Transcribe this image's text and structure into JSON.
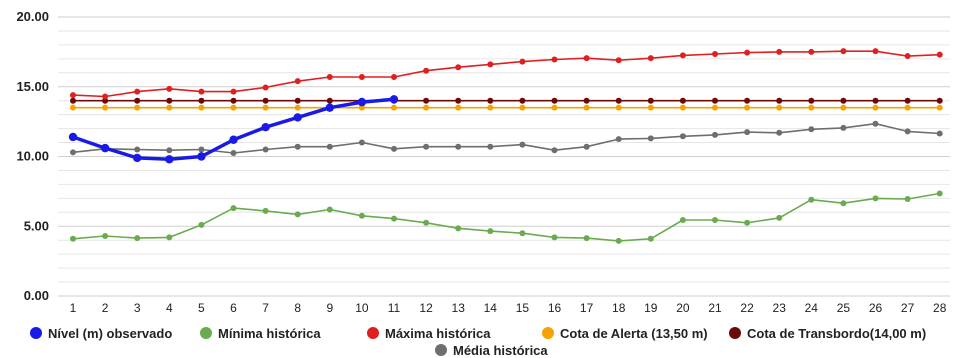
{
  "chart_data": {
    "type": "line",
    "ylim": [
      0,
      20
    ],
    "y_ticks": [
      "0.00",
      "5.00",
      "10.00",
      "15.00",
      "20.00"
    ],
    "categories": [
      "1",
      "2",
      "3",
      "4",
      "5",
      "6",
      "7",
      "8",
      "9",
      "10",
      "11",
      "12",
      "13",
      "14",
      "15",
      "16",
      "17",
      "18",
      "19",
      "20",
      "21",
      "22",
      "23",
      "24",
      "25",
      "26",
      "27",
      "28"
    ],
    "grid": true,
    "legend_position": "bottom",
    "series": [
      {
        "name": "Nível (m) observado",
        "color": "#1a1ae6",
        "values": [
          11.4,
          10.6,
          9.9,
          9.8,
          10.0,
          11.2,
          12.1,
          12.8,
          13.5,
          13.9,
          14.1,
          null,
          null,
          null,
          null,
          null,
          null,
          null,
          null,
          null,
          null,
          null,
          null,
          null,
          null,
          null,
          null,
          null
        ]
      },
      {
        "name": "Mínima histórica",
        "color": "#6aab50",
        "values": [
          4.1,
          4.3,
          4.15,
          4.2,
          5.1,
          6.3,
          6.1,
          5.85,
          6.2,
          5.75,
          5.55,
          5.25,
          4.85,
          4.65,
          4.5,
          4.2,
          4.15,
          3.95,
          4.1,
          5.45,
          5.45,
          5.25,
          5.6,
          6.9,
          6.65,
          7.0,
          6.95,
          7.35
        ]
      },
      {
        "name": "Máxima histórica",
        "color": "#e02020",
        "values": [
          14.4,
          14.3,
          14.65,
          14.85,
          14.65,
          14.65,
          14.95,
          15.4,
          15.7,
          15.7,
          15.7,
          16.15,
          16.4,
          16.6,
          16.8,
          16.95,
          17.05,
          16.9,
          17.05,
          17.25,
          17.35,
          17.45,
          17.5,
          17.5,
          17.55,
          17.55,
          17.2,
          17.3
        ]
      },
      {
        "name": "Cota de Alerta (13,50 m)",
        "color": "#f5a300",
        "values": [
          13.5,
          13.5,
          13.5,
          13.5,
          13.5,
          13.5,
          13.5,
          13.5,
          13.5,
          13.5,
          13.5,
          13.5,
          13.5,
          13.5,
          13.5,
          13.5,
          13.5,
          13.5,
          13.5,
          13.5,
          13.5,
          13.5,
          13.5,
          13.5,
          13.5,
          13.5,
          13.5,
          13.5
        ]
      },
      {
        "name": "Cota de Transbordo(14,00 m)",
        "color": "#6b0a0a",
        "values": [
          14.0,
          14.0,
          14.0,
          14.0,
          14.0,
          14.0,
          14.0,
          14.0,
          14.0,
          14.0,
          14.0,
          14.0,
          14.0,
          14.0,
          14.0,
          14.0,
          14.0,
          14.0,
          14.0,
          14.0,
          14.0,
          14.0,
          14.0,
          14.0,
          14.0,
          14.0,
          14.0,
          14.0
        ]
      },
      {
        "name": "Média histórica",
        "color": "#6e6e6e",
        "values": [
          10.3,
          10.55,
          10.5,
          10.45,
          10.5,
          10.25,
          10.5,
          10.7,
          10.7,
          11.0,
          10.55,
          10.7,
          10.7,
          10.7,
          10.85,
          10.45,
          10.7,
          11.25,
          11.3,
          11.45,
          11.55,
          11.75,
          11.7,
          11.95,
          12.05,
          12.35,
          11.8,
          11.65
        ]
      }
    ]
  }
}
